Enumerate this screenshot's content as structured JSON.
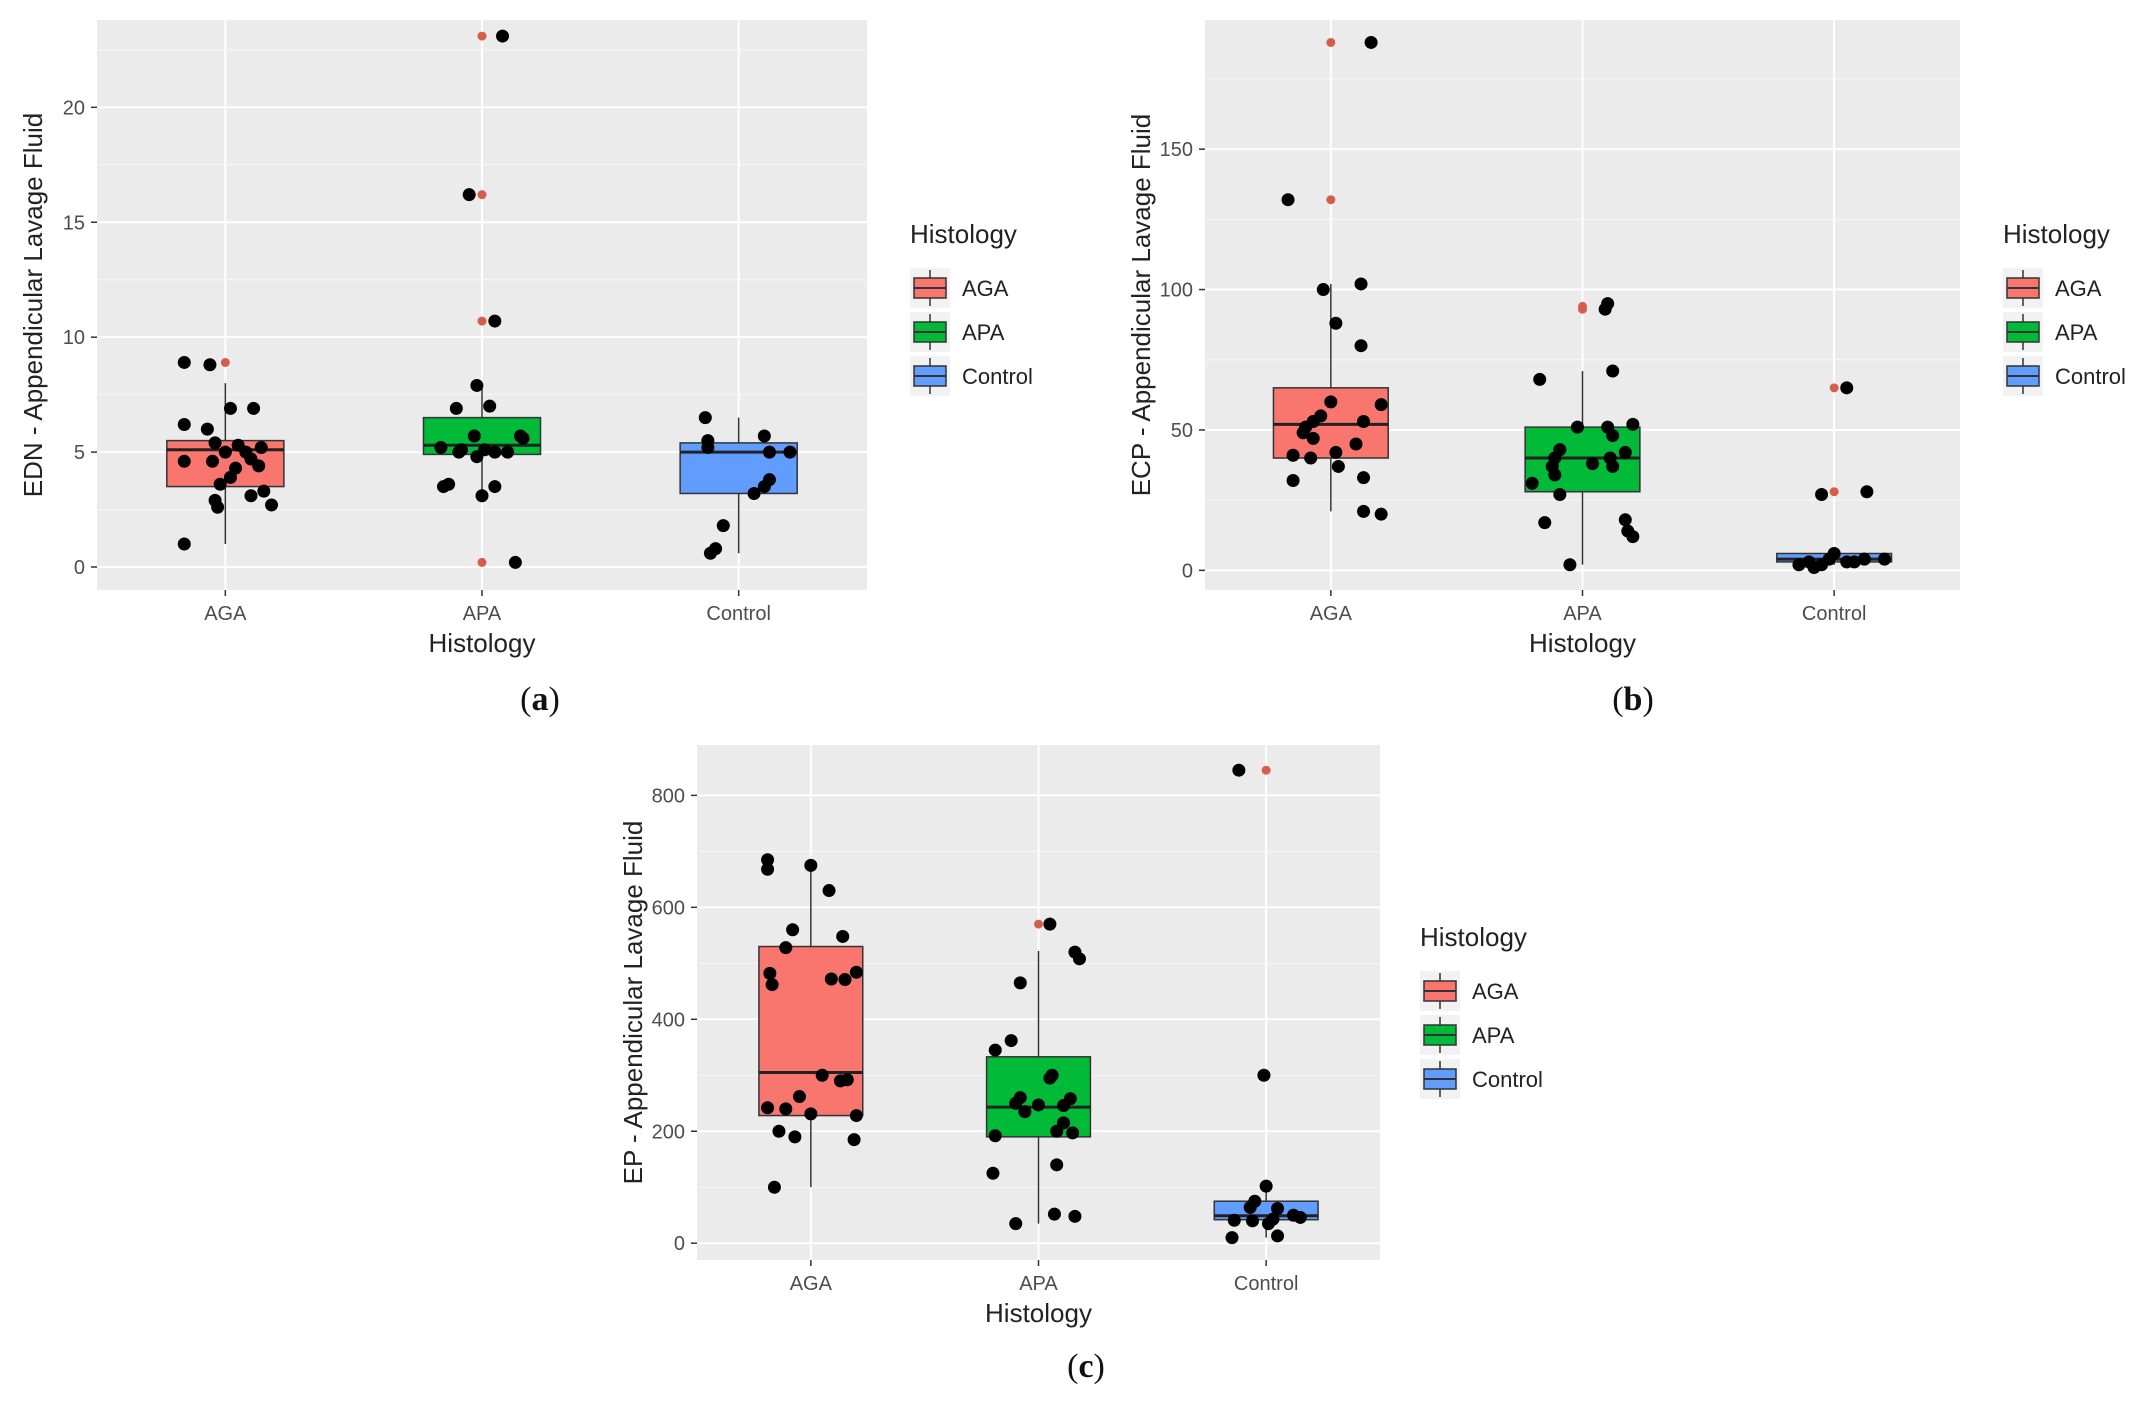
{
  "chart_data": [
    {
      "id": "a",
      "type": "boxplot",
      "caption": "a",
      "xlabel": "Histology",
      "ylabel": "EDN - Appendicular Lavage Fluid",
      "ylim": [
        -1,
        23.8
      ],
      "yticks": [
        0,
        5,
        10,
        15,
        20
      ],
      "categories": [
        "AGA",
        "APA",
        "Control"
      ],
      "legend": {
        "title": "Histology",
        "entries": [
          "AGA",
          "APA",
          "Control"
        ]
      },
      "boxes": [
        {
          "category": "AGA",
          "q1": 3.5,
          "median": 5.1,
          "q3": 5.5,
          "whisker_low": 1.0,
          "whisker_high": 8.0
        },
        {
          "category": "APA",
          "q1": 4.9,
          "median": 5.3,
          "q3": 6.5,
          "whisker_low": 3.0,
          "whisker_high": 8.0
        },
        {
          "category": "Control",
          "q1": 3.2,
          "median": 5.0,
          "q3": 5.4,
          "whisker_low": 0.6,
          "whisker_high": 6.5
        }
      ],
      "outliers": [
        {
          "category": "AGA",
          "values": [
            8.9
          ]
        },
        {
          "category": "APA",
          "values": [
            23.1,
            16.2,
            10.7,
            0.2
          ]
        },
        {
          "category": "Control",
          "values": []
        }
      ],
      "points": [
        {
          "category": "AGA",
          "values": [
            [
              -0.16,
              8.9
            ],
            [
              -0.06,
              8.8
            ],
            [
              0.02,
              6.9
            ],
            [
              0.11,
              6.9
            ],
            [
              -0.16,
              6.2
            ],
            [
              -0.07,
              6.0
            ],
            [
              -0.04,
              5.4
            ],
            [
              0.05,
              5.3
            ],
            [
              0.14,
              5.2
            ],
            [
              0.0,
              5.0
            ],
            [
              0.08,
              5.0
            ],
            [
              -0.05,
              4.6
            ],
            [
              0.1,
              4.7
            ],
            [
              -0.16,
              4.6
            ],
            [
              0.04,
              4.3
            ],
            [
              0.13,
              4.4
            ],
            [
              0.02,
              3.9
            ],
            [
              -0.02,
              3.6
            ],
            [
              0.1,
              3.1
            ],
            [
              0.15,
              3.3
            ],
            [
              -0.04,
              2.9
            ],
            [
              -0.03,
              2.6
            ],
            [
              0.18,
              2.7
            ],
            [
              -0.16,
              1.0
            ]
          ]
        },
        {
          "category": "APA",
          "values": [
            [
              0.08,
              23.1
            ],
            [
              -0.05,
              16.2
            ],
            [
              0.05,
              10.7
            ],
            [
              -0.02,
              7.9
            ],
            [
              0.03,
              7.0
            ],
            [
              -0.1,
              6.9
            ],
            [
              -0.03,
              5.7
            ],
            [
              0.15,
              5.7
            ],
            [
              0.16,
              5.6
            ],
            [
              -0.16,
              5.2
            ],
            [
              -0.08,
              5.1
            ],
            [
              0.01,
              5.1
            ],
            [
              -0.09,
              5.0
            ],
            [
              0.05,
              5.0
            ],
            [
              -0.02,
              4.8
            ],
            [
              0.1,
              5.0
            ],
            [
              -0.15,
              3.5
            ],
            [
              -0.13,
              3.6
            ],
            [
              0.05,
              3.5
            ],
            [
              0.0,
              3.1
            ],
            [
              0.13,
              0.2
            ]
          ]
        },
        {
          "category": "Control",
          "values": [
            [
              -0.13,
              6.5
            ],
            [
              0.1,
              5.7
            ],
            [
              -0.12,
              5.5
            ],
            [
              -0.12,
              5.2
            ],
            [
              0.12,
              5.0
            ],
            [
              0.2,
              5.0
            ],
            [
              0.12,
              3.8
            ],
            [
              0.1,
              3.5
            ],
            [
              0.06,
              3.2
            ],
            [
              -0.06,
              1.8
            ],
            [
              -0.11,
              0.6
            ],
            [
              -0.09,
              0.8
            ]
          ]
        }
      ]
    },
    {
      "id": "b",
      "type": "boxplot",
      "caption": "b",
      "xlabel": "Histology",
      "ylabel": "ECP - Appendicular Lavage Fluid",
      "ylim": [
        -7,
        196
      ],
      "yticks": [
        0,
        50,
        100,
        150
      ],
      "categories": [
        "AGA",
        "APA",
        "Control"
      ],
      "legend": {
        "title": "Histology",
        "entries": [
          "AGA",
          "APA",
          "Control"
        ]
      },
      "boxes": [
        {
          "category": "AGA",
          "q1": 40,
          "median": 52,
          "q3": 65,
          "whisker_low": 21,
          "whisker_high": 102
        },
        {
          "category": "APA",
          "q1": 28,
          "median": 40,
          "q3": 51,
          "whisker_low": 2,
          "whisker_high": 71
        },
        {
          "category": "Control",
          "q1": 3,
          "median": 4,
          "q3": 6,
          "whisker_low": 2,
          "whisker_high": 6
        }
      ],
      "outliers": [
        {
          "category": "AGA",
          "values": [
            188,
            132
          ]
        },
        {
          "category": "APA",
          "values": [
            94,
            93
          ]
        },
        {
          "category": "Control",
          "values": [
            65,
            28
          ]
        }
      ],
      "points": [
        {
          "category": "AGA",
          "values": [
            [
              0.16,
              188
            ],
            [
              -0.17,
              132
            ],
            [
              0.12,
              102
            ],
            [
              -0.03,
              100
            ],
            [
              0.02,
              88
            ],
            [
              0.12,
              80
            ],
            [
              0.0,
              60
            ],
            [
              0.2,
              59
            ],
            [
              -0.04,
              55
            ],
            [
              -0.07,
              53
            ],
            [
              0.13,
              53
            ],
            [
              -0.1,
              51
            ],
            [
              -0.11,
              49
            ],
            [
              -0.07,
              47
            ],
            [
              0.1,
              45
            ],
            [
              0.02,
              42
            ],
            [
              -0.15,
              41
            ],
            [
              -0.08,
              40
            ],
            [
              0.03,
              37
            ],
            [
              0.13,
              33
            ],
            [
              -0.15,
              32
            ],
            [
              0.13,
              21
            ],
            [
              0.2,
              20
            ]
          ]
        },
        {
          "category": "APA",
          "values": [
            [
              0.1,
              95
            ],
            [
              0.09,
              93
            ],
            [
              -0.17,
              68
            ],
            [
              0.12,
              71
            ],
            [
              -0.02,
              51
            ],
            [
              0.1,
              51
            ],
            [
              0.2,
              52
            ],
            [
              0.12,
              48
            ],
            [
              0.17,
              42
            ],
            [
              -0.09,
              43
            ],
            [
              -0.11,
              40
            ],
            [
              0.11,
              40
            ],
            [
              -0.12,
              37
            ],
            [
              0.04,
              38
            ],
            [
              0.12,
              37
            ],
            [
              -0.11,
              34
            ],
            [
              -0.2,
              31
            ],
            [
              -0.09,
              27
            ],
            [
              0.17,
              18
            ],
            [
              -0.15,
              17
            ],
            [
              0.18,
              14
            ],
            [
              0.2,
              12
            ],
            [
              -0.05,
              2
            ]
          ]
        },
        {
          "category": "Control",
          "values": [
            [
              0.05,
              65
            ],
            [
              -0.05,
              27
            ],
            [
              0.13,
              28
            ],
            [
              -0.1,
              3
            ],
            [
              -0.05,
              2
            ],
            [
              -0.02,
              4
            ],
            [
              0.0,
              6
            ],
            [
              0.08,
              3
            ],
            [
              0.12,
              4
            ],
            [
              0.2,
              4
            ],
            [
              -0.14,
              2
            ],
            [
              -0.08,
              1
            ],
            [
              0.05,
              3
            ]
          ]
        }
      ]
    },
    {
      "id": "c",
      "type": "boxplot",
      "caption": "c",
      "xlabel": "Histology",
      "ylabel": "EP - Appendicular Lavage Fluid",
      "ylim": [
        -30,
        890
      ],
      "yticks": [
        0,
        200,
        400,
        600,
        800
      ],
      "categories": [
        "AGA",
        "APA",
        "Control"
      ],
      "legend": {
        "title": "Histology",
        "entries": [
          "AGA",
          "APA",
          "Control"
        ]
      },
      "boxes": [
        {
          "category": "AGA",
          "q1": 228,
          "median": 305,
          "q3": 530,
          "whisker_low": 100,
          "whisker_high": 675
        },
        {
          "category": "APA",
          "q1": 190,
          "median": 243,
          "q3": 333,
          "whisker_low": 35,
          "whisker_high": 522
        },
        {
          "category": "Control",
          "q1": 42,
          "median": 49,
          "q3": 75,
          "whisker_low": 10,
          "whisker_high": 100
        }
      ],
      "outliers": [
        {
          "category": "AGA",
          "values": []
        },
        {
          "category": "APA",
          "values": [
            570
          ]
        },
        {
          "category": "Control",
          "values": [
            845,
            300
          ]
        }
      ],
      "points": [
        {
          "category": "AGA",
          "values": [
            [
              -0.19,
              685
            ],
            [
              0.0,
              675
            ],
            [
              -0.19,
              668
            ],
            [
              0.08,
              630
            ],
            [
              -0.08,
              560
            ],
            [
              0.14,
              548
            ],
            [
              -0.11,
              528
            ],
            [
              -0.18,
              482
            ],
            [
              0.2,
              484
            ],
            [
              -0.17,
              462
            ],
            [
              0.09,
              472
            ],
            [
              0.15,
              471
            ],
            [
              0.05,
              300
            ],
            [
              0.16,
              292
            ],
            [
              0.13,
              290
            ],
            [
              -0.05,
              262
            ],
            [
              -0.19,
              242
            ],
            [
              -0.11,
              240
            ],
            [
              0.0,
              231
            ],
            [
              0.2,
              228
            ],
            [
              -0.14,
              200
            ],
            [
              -0.07,
              190
            ],
            [
              0.19,
              185
            ],
            [
              -0.16,
              100
            ]
          ]
        },
        {
          "category": "APA",
          "values": [
            [
              0.05,
              570
            ],
            [
              0.16,
              520
            ],
            [
              0.18,
              508
            ],
            [
              -0.08,
              465
            ],
            [
              -0.12,
              362
            ],
            [
              -0.19,
              345
            ],
            [
              0.06,
              300
            ],
            [
              0.05,
              295
            ],
            [
              -0.08,
              260
            ],
            [
              0.14,
              258
            ],
            [
              -0.1,
              250
            ],
            [
              0.0,
              247
            ],
            [
              0.11,
              246
            ],
            [
              -0.06,
              235
            ],
            [
              0.11,
              215
            ],
            [
              0.08,
              200
            ],
            [
              0.15,
              197
            ],
            [
              -0.19,
              192
            ],
            [
              0.08,
              140
            ],
            [
              -0.2,
              125
            ],
            [
              0.07,
              52
            ],
            [
              0.16,
              48
            ],
            [
              -0.1,
              35
            ]
          ]
        },
        {
          "category": "Control",
          "values": [
            [
              -0.12,
              845
            ],
            [
              -0.01,
              300
            ],
            [
              0.0,
              102
            ],
            [
              -0.05,
              75
            ],
            [
              -0.07,
              64
            ],
            [
              0.05,
              62
            ],
            [
              0.12,
              50
            ],
            [
              0.15,
              46
            ],
            [
              0.03,
              43
            ],
            [
              -0.06,
              40
            ],
            [
              -0.14,
              41
            ],
            [
              0.01,
              35
            ],
            [
              0.05,
              13
            ],
            [
              -0.15,
              10
            ]
          ]
        }
      ]
    }
  ],
  "colors": {
    "AGA": "#F8766D",
    "APA": "#00BA38",
    "Control": "#619CFF",
    "outlier": "#D55E4A",
    "panel_bg": "#EBEBEB",
    "grid": "#FFFFFF",
    "point": "#000000"
  }
}
